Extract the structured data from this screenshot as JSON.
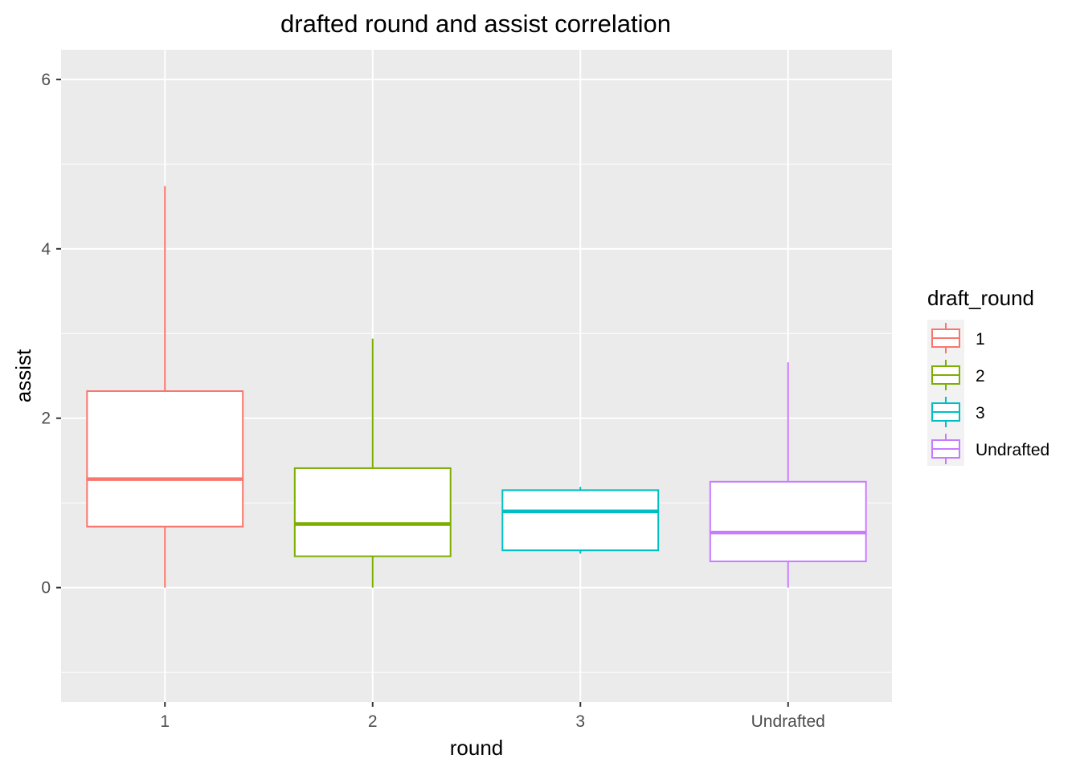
{
  "chart_data": {
    "type": "box",
    "title": "drafted round and assist correlation",
    "xlabel": "round",
    "ylabel": "assist",
    "ylim": [
      -1.35,
      6.35
    ],
    "yticks": [
      0,
      2,
      4,
      6
    ],
    "grid": true,
    "legend": {
      "title": "draft_round",
      "position": "right",
      "entries": [
        "1",
        "2",
        "3",
        "Undrafted"
      ]
    },
    "categories": [
      "1",
      "2",
      "3",
      "Undrafted"
    ],
    "series": [
      {
        "name": "1",
        "color": "#F8766D",
        "min": 0.0,
        "q1": 0.72,
        "median": 1.28,
        "q3": 2.32,
        "max": 4.74
      },
      {
        "name": "2",
        "color": "#7CAE00",
        "min": 0.0,
        "q1": 0.37,
        "median": 0.75,
        "q3": 1.41,
        "max": 2.94
      },
      {
        "name": "3",
        "color": "#00BFC4",
        "min": 0.4,
        "q1": 0.44,
        "median": 0.9,
        "q3": 1.15,
        "max": 1.19
      },
      {
        "name": "Undrafted",
        "color": "#C77CFF",
        "min": 0.0,
        "q1": 0.31,
        "median": 0.65,
        "q3": 1.25,
        "max": 2.66
      }
    ]
  }
}
